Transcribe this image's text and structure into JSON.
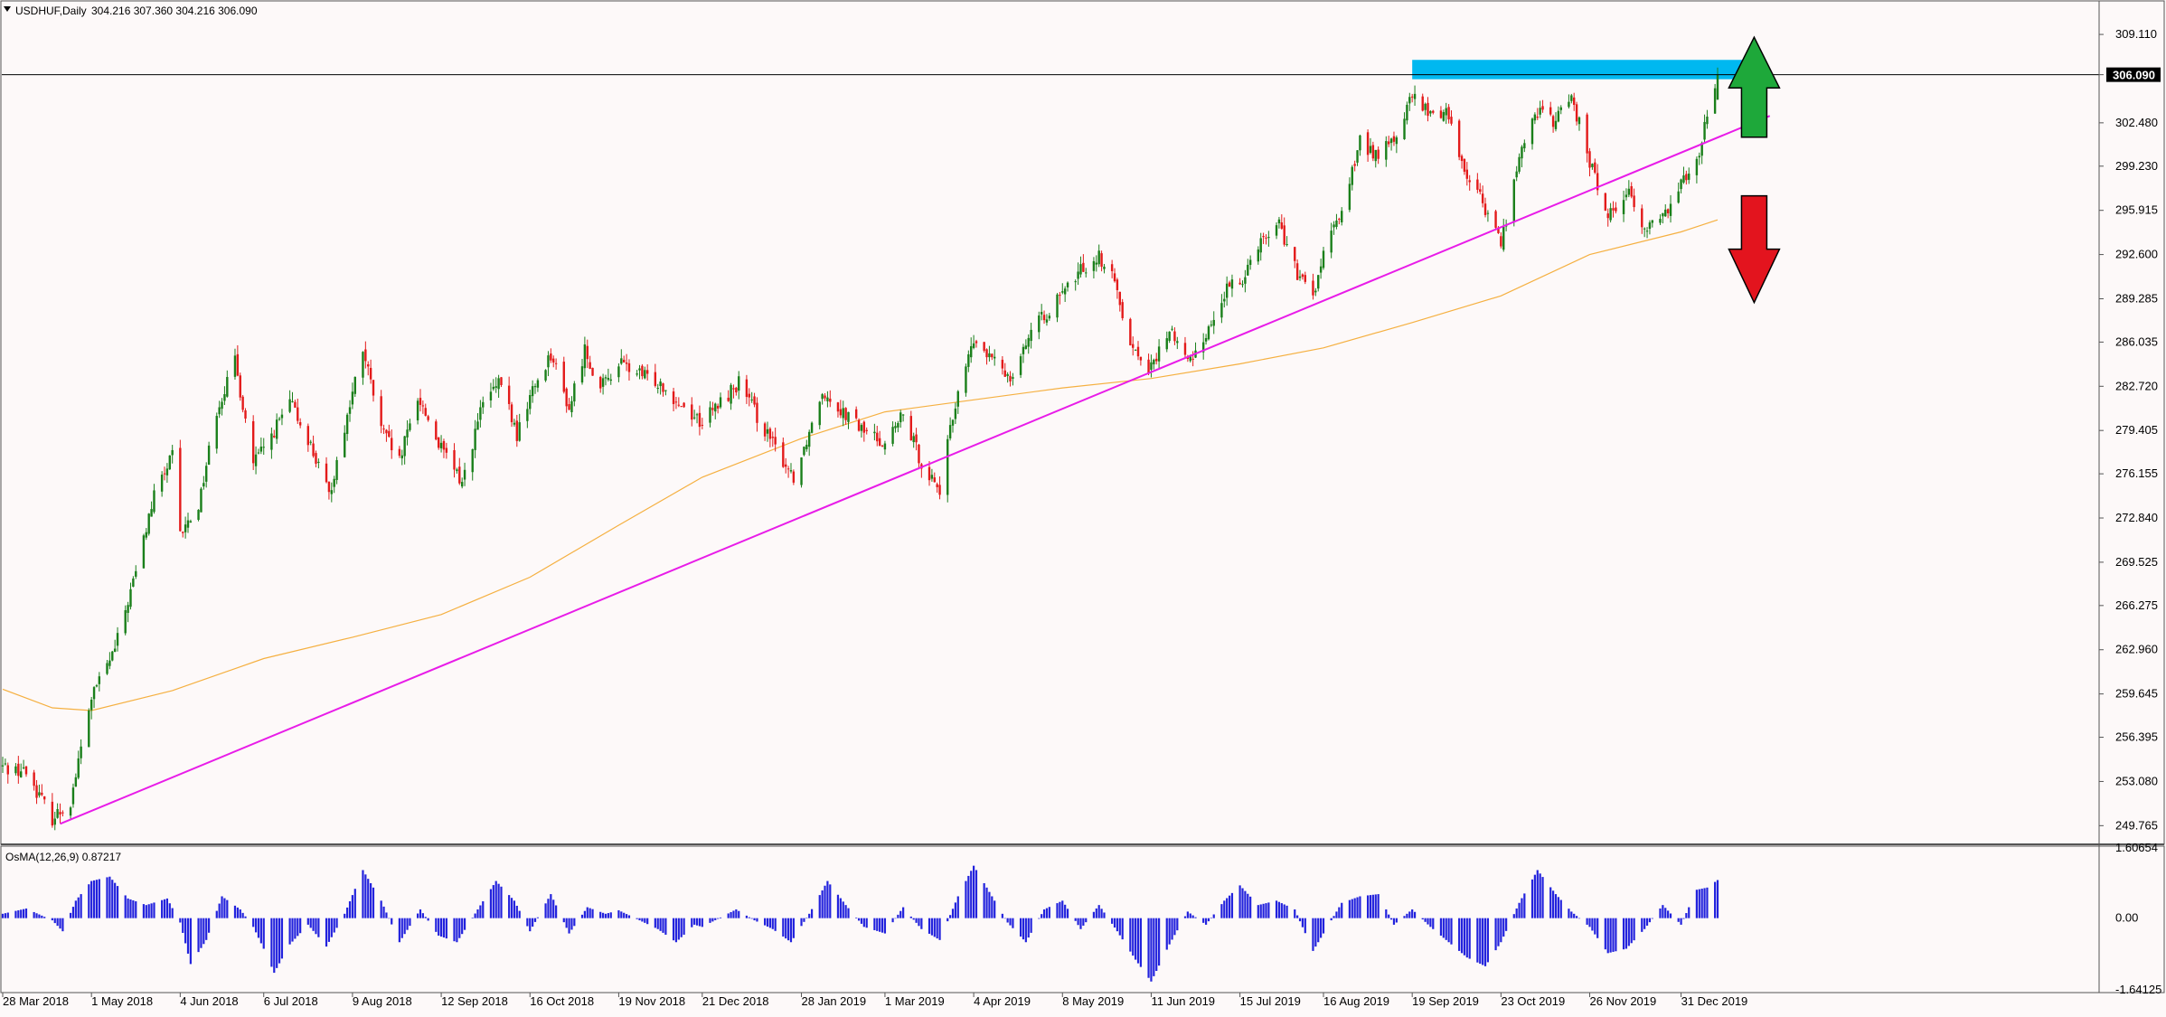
{
  "header": {
    "symbol_label": "USDHUF,Daily",
    "ohlc_label": "304.216 307.360 304.216 306.090"
  },
  "indicator": {
    "label": "OsMA(12,26,9) 0.87217"
  },
  "colors": {
    "background": "#fdf9f9",
    "bull_candle": "#1a7f1a",
    "bear_candle": "#e31a1a",
    "moving_average": "#f5b041",
    "trendline": "#e81ce8",
    "resistance_zone": "#00b8f0",
    "osma_bars": "#2222dd",
    "up_arrow": "#1ea83a",
    "down_arrow": "#e3141e",
    "price_tag_bg": "#000000",
    "price_tag_text": "#ffffff"
  },
  "chart_data": [
    {
      "type": "candlestick",
      "symbol": "USDHUF",
      "timeframe": "Daily",
      "ylim": [
        248.5,
        310.2
      ],
      "y_ticks": [
        "309.110",
        "306.090",
        "302.480",
        "299.230",
        "295.915",
        "292.600",
        "289.285",
        "286.035",
        "282.720",
        "279.405",
        "276.155",
        "272.840",
        "269.525",
        "266.275",
        "262.960",
        "259.645",
        "256.395",
        "253.080",
        "249.765"
      ],
      "current_price_label": "306.090",
      "x_ticks": [
        "28 Mar 2018",
        "1 May 2018",
        "4 Jun 2018",
        "6 Jul 2018",
        "9 Aug 2018",
        "12 Sep 2018",
        "16 Oct 2018",
        "19 Nov 2018",
        "21 Dec 2018",
        "28 Jan 2019",
        "1 Mar 2019",
        "4 Apr 2019",
        "8 May 2019",
        "11 Jun 2019",
        "15 Jul 2019",
        "16 Aug 2019",
        "19 Sep 2019",
        "23 Oct 2019",
        "26 Nov 2019",
        "31 Dec 2019"
      ],
      "closes_by_date": [
        [
          "2018-03-28",
          254.2
        ],
        [
          "2018-04-06",
          253.8
        ],
        [
          "2018-04-16",
          250.3
        ],
        [
          "2018-04-23",
          251.6
        ],
        [
          "2018-05-01",
          259.4
        ],
        [
          "2018-05-10",
          263.0
        ],
        [
          "2018-05-18",
          268.8
        ],
        [
          "2018-05-25",
          274.5
        ],
        [
          "2018-06-01",
          277.5
        ],
        [
          "2018-06-04",
          271.5
        ],
        [
          "2018-06-11",
          273.8
        ],
        [
          "2018-06-18",
          281.0
        ],
        [
          "2018-06-25",
          284.5
        ],
        [
          "2018-07-02",
          277.0
        ],
        [
          "2018-07-06",
          278.0
        ],
        [
          "2018-07-16",
          281.5
        ],
        [
          "2018-07-23",
          278.8
        ],
        [
          "2018-07-31",
          274.5
        ],
        [
          "2018-08-07",
          280.5
        ],
        [
          "2018-08-13",
          285.5
        ],
        [
          "2018-08-20",
          279.5
        ],
        [
          "2018-08-27",
          277.0
        ],
        [
          "2018-09-03",
          282.0
        ],
        [
          "2018-09-12",
          278.0
        ],
        [
          "2018-09-20",
          275.5
        ],
        [
          "2018-09-28",
          281.5
        ],
        [
          "2018-10-05",
          283.0
        ],
        [
          "2018-10-11",
          279.0
        ],
        [
          "2018-10-16",
          282.0
        ],
        [
          "2018-10-24",
          285.2
        ],
        [
          "2018-10-31",
          281.0
        ],
        [
          "2018-11-06",
          285.5
        ],
        [
          "2018-11-12",
          282.5
        ],
        [
          "2018-11-19",
          284.5
        ],
        [
          "2018-11-28",
          283.5
        ],
        [
          "2018-12-05",
          283.0
        ],
        [
          "2018-12-12",
          281.5
        ],
        [
          "2018-12-21",
          280.0
        ],
        [
          "2018-12-28",
          281.5
        ],
        [
          "2019-01-04",
          283.0
        ],
        [
          "2019-01-11",
          280.5
        ],
        [
          "2019-01-18",
          278.0
        ],
        [
          "2019-01-25",
          276.0
        ],
        [
          "2019-01-28",
          277.5
        ],
        [
          "2019-02-05",
          282.5
        ],
        [
          "2019-02-12",
          281.0
        ],
        [
          "2019-02-20",
          279.5
        ],
        [
          "2019-03-01",
          278.5
        ],
        [
          "2019-03-08",
          280.5
        ],
        [
          "2019-03-15",
          277.0
        ],
        [
          "2019-03-22",
          275.0
        ],
        [
          "2019-03-29",
          282.5
        ],
        [
          "2019-04-04",
          286.0
        ],
        [
          "2019-04-12",
          284.5
        ],
        [
          "2019-04-18",
          283.5
        ],
        [
          "2019-04-25",
          286.5
        ],
        [
          "2019-05-03",
          288.5
        ],
        [
          "2019-05-08",
          289.5
        ],
        [
          "2019-05-15",
          291.5
        ],
        [
          "2019-05-22",
          292.5
        ],
        [
          "2019-05-28",
          290.5
        ],
        [
          "2019-06-04",
          285.5
        ],
        [
          "2019-06-11",
          284.0
        ],
        [
          "2019-06-18",
          287.0
        ],
        [
          "2019-06-25",
          284.5
        ],
        [
          "2019-07-03",
          287.0
        ],
        [
          "2019-07-10",
          290.0
        ],
        [
          "2019-07-15",
          290.5
        ],
        [
          "2019-07-22",
          293.5
        ],
        [
          "2019-07-30",
          295.0
        ],
        [
          "2019-08-06",
          291.0
        ],
        [
          "2019-08-12",
          289.5
        ],
        [
          "2019-08-16",
          292.5
        ],
        [
          "2019-08-23",
          296.0
        ],
        [
          "2019-08-30",
          301.0
        ],
        [
          "2019-09-06",
          300.0
        ],
        [
          "2019-09-13",
          301.5
        ],
        [
          "2019-09-19",
          304.5
        ],
        [
          "2019-09-26",
          303.0
        ],
        [
          "2019-10-02",
          303.5
        ],
        [
          "2019-10-09",
          299.0
        ],
        [
          "2019-10-16",
          296.5
        ],
        [
          "2019-10-23",
          293.5
        ],
        [
          "2019-10-29",
          299.0
        ],
        [
          "2019-11-05",
          303.5
        ],
        [
          "2019-11-12",
          302.5
        ],
        [
          "2019-11-19",
          304.5
        ],
        [
          "2019-11-26",
          299.5
        ],
        [
          "2019-12-03",
          295.5
        ],
        [
          "2019-12-10",
          297.5
        ],
        [
          "2019-12-17",
          294.5
        ],
        [
          "2019-12-24",
          295.5
        ],
        [
          "2019-12-31",
          298.0
        ],
        [
          "2020-01-07",
          300.5
        ],
        [
          "2020-01-10",
          303.0
        ],
        [
          "2020-01-14",
          306.09
        ]
      ],
      "moving_average_path": [
        [
          "2018-03-28",
          260.0
        ],
        [
          "2018-04-16",
          258.6
        ],
        [
          "2018-05-01",
          258.4
        ],
        [
          "2018-06-01",
          259.9
        ],
        [
          "2018-07-06",
          262.3
        ],
        [
          "2018-08-09",
          263.9
        ],
        [
          "2018-09-12",
          265.6
        ],
        [
          "2018-10-16",
          268.4
        ],
        [
          "2018-11-19",
          272.3
        ],
        [
          "2018-12-21",
          275.9
        ],
        [
          "2019-01-28",
          278.8
        ],
        [
          "2019-03-01",
          280.8
        ],
        [
          "2019-04-04",
          281.7
        ],
        [
          "2019-05-08",
          282.6
        ],
        [
          "2019-06-11",
          283.3
        ],
        [
          "2019-07-15",
          284.4
        ],
        [
          "2019-08-16",
          285.6
        ],
        [
          "2019-09-19",
          287.5
        ],
        [
          "2019-10-23",
          289.5
        ],
        [
          "2019-11-26",
          292.6
        ],
        [
          "2019-12-31",
          294.3
        ],
        [
          "2020-01-14",
          295.2
        ]
      ],
      "trendline": [
        [
          "2018-04-19",
          249.9
        ],
        [
          "2020-02-03",
          303.0
        ]
      ],
      "resistance_zone": {
        "from": "2019-09-19",
        "to": "2020-01-24",
        "top": 307.2,
        "bottom": 305.75
      }
    },
    {
      "type": "bar",
      "name": "OsMA(12,26,9)",
      "y_ticks": [
        "1.60654",
        "0.00",
        "-1.64125"
      ],
      "ylim": [
        -1.64125,
        1.60654
      ],
      "histogram_by_date": [
        [
          "2018-03-28",
          0.1
        ],
        [
          "2018-04-06",
          0.22
        ],
        [
          "2018-04-16",
          -0.05
        ],
        [
          "2018-04-20",
          -0.3
        ],
        [
          "2018-04-25",
          0.4
        ],
        [
          "2018-05-01",
          0.85
        ],
        [
          "2018-05-08",
          0.95
        ],
        [
          "2018-05-15",
          0.45
        ],
        [
          "2018-05-22",
          0.3
        ],
        [
          "2018-05-30",
          0.45
        ],
        [
          "2018-06-04",
          -0.1
        ],
        [
          "2018-06-08",
          -1.05
        ],
        [
          "2018-06-14",
          -0.5
        ],
        [
          "2018-06-20",
          0.5
        ],
        [
          "2018-06-27",
          0.2
        ],
        [
          "2018-07-02",
          -0.2
        ],
        [
          "2018-07-06",
          -0.7
        ],
        [
          "2018-07-10",
          -1.25
        ],
        [
          "2018-07-16",
          -0.6
        ],
        [
          "2018-07-23",
          -0.15
        ],
        [
          "2018-07-30",
          -0.65
        ],
        [
          "2018-08-06",
          0.1
        ],
        [
          "2018-08-13",
          1.1
        ],
        [
          "2018-08-20",
          0.4
        ],
        [
          "2018-08-27",
          -0.55
        ],
        [
          "2018-09-04",
          0.2
        ],
        [
          "2018-09-11",
          -0.4
        ],
        [
          "2018-09-18",
          -0.55
        ],
        [
          "2018-09-26",
          0.2
        ],
        [
          "2018-10-03",
          0.85
        ],
        [
          "2018-10-10",
          0.4
        ],
        [
          "2018-10-16",
          -0.3
        ],
        [
          "2018-10-24",
          0.55
        ],
        [
          "2018-10-31",
          -0.35
        ],
        [
          "2018-11-07",
          0.25
        ],
        [
          "2018-11-14",
          0.1
        ],
        [
          "2018-11-19",
          0.18
        ],
        [
          "2018-11-27",
          -0.05
        ],
        [
          "2018-12-04",
          -0.25
        ],
        [
          "2018-12-11",
          -0.55
        ],
        [
          "2018-12-18",
          -0.15
        ],
        [
          "2018-12-21",
          -0.2
        ],
        [
          "2019-01-03",
          0.2
        ],
        [
          "2019-01-10",
          -0.05
        ],
        [
          "2019-01-17",
          -0.25
        ],
        [
          "2019-01-24",
          -0.55
        ],
        [
          "2019-01-31",
          0.1
        ],
        [
          "2019-02-07",
          0.85
        ],
        [
          "2019-02-14",
          0.3
        ],
        [
          "2019-02-21",
          -0.2
        ],
        [
          "2019-03-01",
          -0.35
        ],
        [
          "2019-03-08",
          0.25
        ],
        [
          "2019-03-15",
          -0.25
        ],
        [
          "2019-03-22",
          -0.5
        ],
        [
          "2019-03-29",
          0.5
        ],
        [
          "2019-04-04",
          1.2
        ],
        [
          "2019-04-10",
          0.6
        ],
        [
          "2019-04-17",
          -0.1
        ],
        [
          "2019-04-24",
          -0.55
        ],
        [
          "2019-05-01",
          0.2
        ],
        [
          "2019-05-08",
          0.4
        ],
        [
          "2019-05-15",
          -0.25
        ],
        [
          "2019-05-22",
          0.3
        ],
        [
          "2019-05-29",
          -0.3
        ],
        [
          "2019-06-05",
          -0.95
        ],
        [
          "2019-06-11",
          -1.45
        ],
        [
          "2019-06-18",
          -0.6
        ],
        [
          "2019-06-25",
          0.15
        ],
        [
          "2019-07-02",
          -0.15
        ],
        [
          "2019-07-09",
          0.4
        ],
        [
          "2019-07-15",
          0.75
        ],
        [
          "2019-07-22",
          0.3
        ],
        [
          "2019-07-29",
          0.4
        ],
        [
          "2019-08-05",
          0.2
        ],
        [
          "2019-08-12",
          -0.75
        ],
        [
          "2019-08-16",
          -0.35
        ],
        [
          "2019-08-23",
          0.35
        ],
        [
          "2019-08-30",
          0.5
        ],
        [
          "2019-09-06",
          0.55
        ],
        [
          "2019-09-12",
          -0.15
        ],
        [
          "2019-09-19",
          0.2
        ],
        [
          "2019-09-26",
          -0.2
        ],
        [
          "2019-10-03",
          -0.55
        ],
        [
          "2019-10-10",
          -0.9
        ],
        [
          "2019-10-17",
          -1.1
        ],
        [
          "2019-10-23",
          -0.55
        ],
        [
          "2019-10-30",
          0.35
        ],
        [
          "2019-11-06",
          1.1
        ],
        [
          "2019-11-13",
          0.55
        ],
        [
          "2019-11-19",
          0.15
        ],
        [
          "2019-11-26",
          -0.2
        ],
        [
          "2019-12-03",
          -0.8
        ],
        [
          "2019-12-10",
          -0.7
        ],
        [
          "2019-12-17",
          -0.25
        ],
        [
          "2019-12-24",
          0.3
        ],
        [
          "2019-12-31",
          -0.15
        ],
        [
          "2020-01-06",
          0.65
        ],
        [
          "2020-01-10",
          0.7
        ],
        [
          "2020-01-14",
          0.87217
        ]
      ]
    }
  ]
}
